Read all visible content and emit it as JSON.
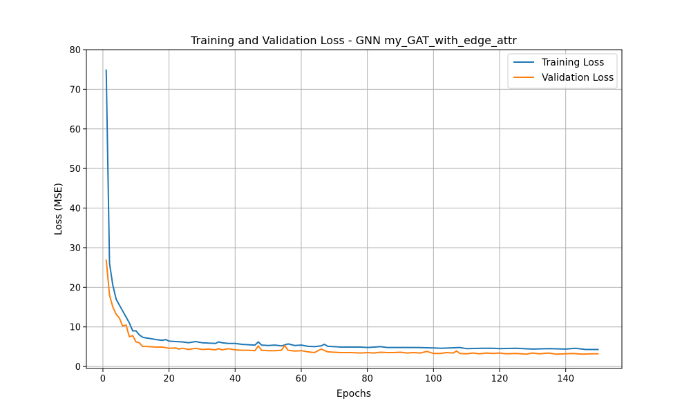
{
  "chart_data": {
    "type": "line",
    "title": "Training and Validation Loss - GNN my_GAT_with_edge_attr",
    "xlabel": "Epochs",
    "ylabel": "Loss (MSE)",
    "xlim": [
      -5,
      157
    ],
    "ylim": [
      -0.5,
      80
    ],
    "xticks": [
      0,
      20,
      40,
      60,
      80,
      100,
      120,
      140
    ],
    "yticks": [
      0,
      10,
      20,
      30,
      40,
      50,
      60,
      70,
      80
    ],
    "grid": true,
    "legend_position": "top-right",
    "series": [
      {
        "name": "Training Loss",
        "color": "#1f77b4",
        "points": [
          [
            1,
            75
          ],
          [
            2,
            26
          ],
          [
            3,
            20.5
          ],
          [
            4,
            17
          ],
          [
            5,
            15.5
          ],
          [
            6,
            14
          ],
          [
            7,
            12.5
          ],
          [
            8,
            11
          ],
          [
            9,
            9
          ],
          [
            10,
            9
          ],
          [
            11,
            8
          ],
          [
            12,
            7.4
          ],
          [
            13,
            7.2
          ],
          [
            14,
            7.1
          ],
          [
            16,
            6.8
          ],
          [
            18,
            6.6
          ],
          [
            19,
            6.8
          ],
          [
            20,
            6.4
          ],
          [
            22,
            6.3
          ],
          [
            24,
            6.2
          ],
          [
            26,
            6.0
          ],
          [
            28,
            6.3
          ],
          [
            30,
            6.0
          ],
          [
            32,
            5.9
          ],
          [
            34,
            5.8
          ],
          [
            35,
            6.2
          ],
          [
            36,
            6.0
          ],
          [
            38,
            5.8
          ],
          [
            40,
            5.8
          ],
          [
            42,
            5.6
          ],
          [
            44,
            5.5
          ],
          [
            46,
            5.4
          ],
          [
            47,
            6.2
          ],
          [
            48,
            5.4
          ],
          [
            50,
            5.3
          ],
          [
            52,
            5.4
          ],
          [
            54,
            5.2
          ],
          [
            56,
            5.7
          ],
          [
            58,
            5.3
          ],
          [
            60,
            5.4
          ],
          [
            62,
            5.1
          ],
          [
            64,
            5.0
          ],
          [
            66,
            5.2
          ],
          [
            67,
            5.6
          ],
          [
            68,
            5.1
          ],
          [
            70,
            5.0
          ],
          [
            72,
            4.9
          ],
          [
            75,
            4.9
          ],
          [
            78,
            4.9
          ],
          [
            80,
            4.8
          ],
          [
            82,
            4.9
          ],
          [
            84,
            5.0
          ],
          [
            86,
            4.8
          ],
          [
            90,
            4.8
          ],
          [
            95,
            4.8
          ],
          [
            100,
            4.7
          ],
          [
            102,
            4.6
          ],
          [
            105,
            4.7
          ],
          [
            108,
            4.8
          ],
          [
            110,
            4.5
          ],
          [
            115,
            4.6
          ],
          [
            118,
            4.6
          ],
          [
            120,
            4.5
          ],
          [
            125,
            4.6
          ],
          [
            130,
            4.4
          ],
          [
            135,
            4.5
          ],
          [
            140,
            4.4
          ],
          [
            143,
            4.6
          ],
          [
            146,
            4.3
          ],
          [
            150,
            4.3
          ]
        ]
      },
      {
        "name": "Validation Loss",
        "color": "#ff7f0e",
        "points": [
          [
            1,
            27
          ],
          [
            2,
            18
          ],
          [
            3,
            15
          ],
          [
            4,
            13.2
          ],
          [
            5,
            12.2
          ],
          [
            6,
            10.2
          ],
          [
            7,
            10.5
          ],
          [
            8,
            7.5
          ],
          [
            9,
            7.8
          ],
          [
            10,
            6.2
          ],
          [
            11,
            6.0
          ],
          [
            12,
            5.1
          ],
          [
            14,
            5.0
          ],
          [
            16,
            4.9
          ],
          [
            18,
            4.9
          ],
          [
            20,
            4.6
          ],
          [
            22,
            4.7
          ],
          [
            23,
            4.4
          ],
          [
            24,
            4.6
          ],
          [
            26,
            4.3
          ],
          [
            28,
            4.6
          ],
          [
            30,
            4.3
          ],
          [
            32,
            4.4
          ],
          [
            34,
            4.2
          ],
          [
            35,
            4.5
          ],
          [
            36,
            4.2
          ],
          [
            38,
            4.5
          ],
          [
            40,
            4.2
          ],
          [
            42,
            4.1
          ],
          [
            44,
            4.1
          ],
          [
            46,
            4.0
          ],
          [
            47,
            5.2
          ],
          [
            48,
            4.1
          ],
          [
            50,
            4.0
          ],
          [
            52,
            4.0
          ],
          [
            54,
            4.1
          ],
          [
            55,
            5.3
          ],
          [
            56,
            4.1
          ],
          [
            58,
            3.9
          ],
          [
            60,
            4.0
          ],
          [
            62,
            3.7
          ],
          [
            64,
            3.5
          ],
          [
            66,
            4.4
          ],
          [
            68,
            3.7
          ],
          [
            70,
            3.6
          ],
          [
            72,
            3.5
          ],
          [
            75,
            3.5
          ],
          [
            78,
            3.4
          ],
          [
            80,
            3.5
          ],
          [
            82,
            3.4
          ],
          [
            84,
            3.6
          ],
          [
            86,
            3.5
          ],
          [
            88,
            3.5
          ],
          [
            90,
            3.6
          ],
          [
            92,
            3.4
          ],
          [
            94,
            3.5
          ],
          [
            96,
            3.4
          ],
          [
            98,
            3.8
          ],
          [
            100,
            3.3
          ],
          [
            102,
            3.3
          ],
          [
            104,
            3.5
          ],
          [
            106,
            3.4
          ],
          [
            107,
            3.9
          ],
          [
            108,
            3.3
          ],
          [
            110,
            3.2
          ],
          [
            112,
            3.4
          ],
          [
            114,
            3.2
          ],
          [
            116,
            3.4
          ],
          [
            118,
            3.3
          ],
          [
            120,
            3.4
          ],
          [
            122,
            3.2
          ],
          [
            125,
            3.3
          ],
          [
            128,
            3.1
          ],
          [
            130,
            3.4
          ],
          [
            132,
            3.2
          ],
          [
            135,
            3.4
          ],
          [
            137,
            3.1
          ],
          [
            140,
            3.2
          ],
          [
            142,
            3.3
          ],
          [
            145,
            3.1
          ],
          [
            148,
            3.2
          ],
          [
            150,
            3.2
          ]
        ]
      }
    ]
  }
}
